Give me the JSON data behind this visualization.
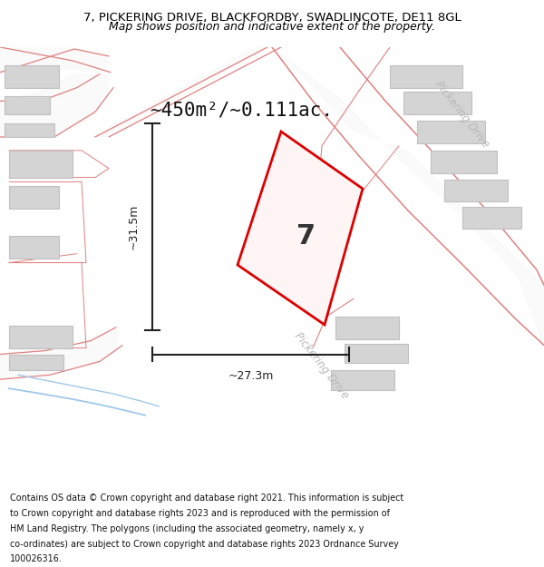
{
  "title_line1": "7, PICKERING DRIVE, BLACKFORDBY, SWADLINCOTE, DE11 8GL",
  "title_line2": "Map shows position and indicative extent of the property.",
  "area_label": "~450m²/~0.111ac.",
  "dim_vertical": "~31.5m",
  "dim_horizontal": "~27.3m",
  "property_number": "7",
  "map_bg": "#eeeeee",
  "road_fill": "#fafafa",
  "building_color": "#d4d4d4",
  "building_edge": "#c0c0c0",
  "property_color": "#dd0000",
  "dim_color": "#222222",
  "road_line_color": "#e08080",
  "road_label_color": "#b8b8b8",
  "water_color": "#a0c8e8",
  "title_color": "#000000",
  "footer_color": "#111111",
  "fig_width": 6.0,
  "fig_height": 6.25
}
